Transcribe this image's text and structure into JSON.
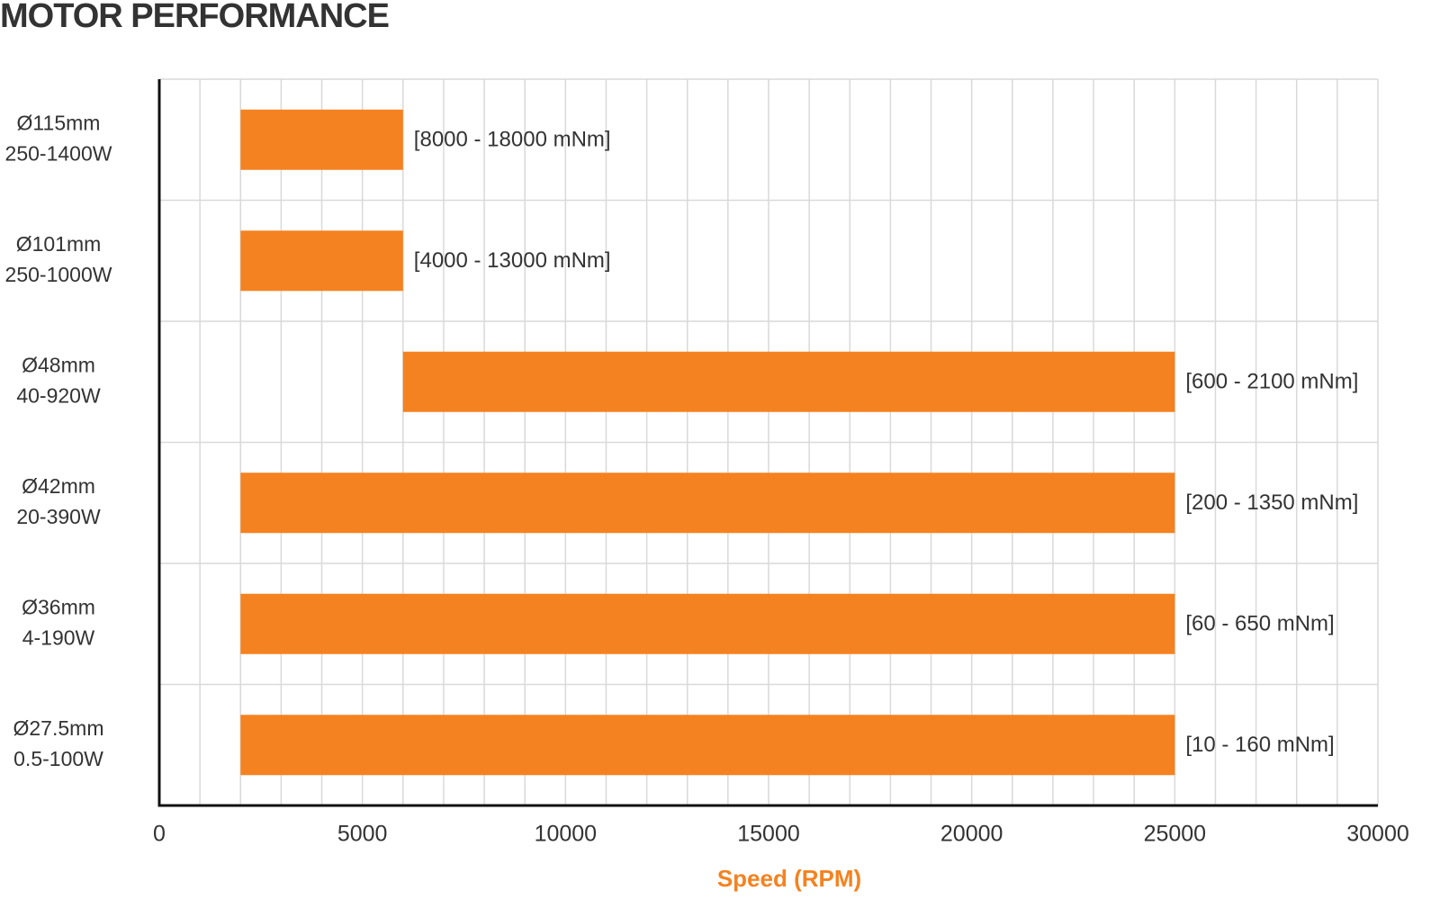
{
  "chart_data": {
    "type": "floating-bar",
    "orientation": "horizontal",
    "title": "MOTOR PERFORMANCE",
    "xlabel": "Speed (RPM)",
    "categories": [
      [
        "Ø115mm",
        "250-1400W"
      ],
      [
        "Ø101mm",
        "250-1000W"
      ],
      [
        "Ø48mm",
        "40-920W"
      ],
      [
        "Ø42mm",
        "20-390W"
      ],
      [
        "Ø36mm",
        "4-190W"
      ],
      [
        "Ø27.5mm",
        "0.5-100W"
      ]
    ],
    "values": [
      [
        2000,
        6000
      ],
      [
        2000,
        6000
      ],
      [
        6000,
        25000
      ],
      [
        2000,
        25000
      ],
      [
        2000,
        25000
      ],
      [
        2000,
        25000
      ]
    ],
    "annotations": [
      "[8000 - 18000 mNm]",
      "[4000 - 13000 mNm]",
      "[600 - 2100 mNm]",
      "[200 - 1350 mNm]",
      "[60 - 650 mNm]",
      "[10 - 160 mNm]"
    ],
    "color": "#f58220",
    "xlabel_color": "#f58220",
    "xlim": [
      0,
      30000
    ],
    "xticks": [
      0,
      5000,
      10000,
      15000,
      20000,
      25000,
      30000
    ],
    "xminorticks": [
      0,
      1000,
      2000,
      3000,
      4000,
      5000,
      6000,
      7000,
      8000,
      9000,
      10000,
      11000,
      12000,
      13000,
      14000,
      15000,
      16000,
      17000,
      18000,
      19000,
      20000,
      21000,
      22000,
      23000,
      24000,
      25000,
      26000,
      27000,
      28000,
      29000,
      30000
    ],
    "grid": true
  }
}
